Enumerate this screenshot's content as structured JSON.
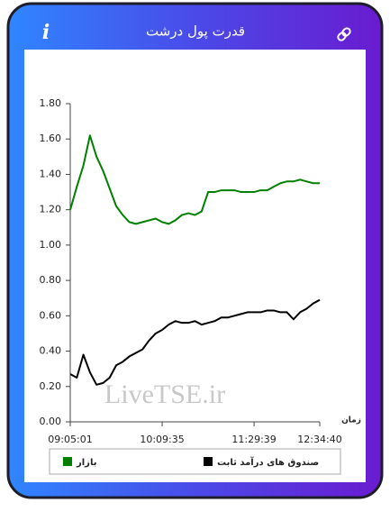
{
  "header": {
    "title": "قدرت پول درشت",
    "info": "i"
  },
  "watermark": "LiveTSE.ir",
  "chart_data": {
    "type": "line",
    "x_label": "زمان",
    "categories": [
      "09:05:01",
      null,
      null,
      null,
      null,
      null,
      null,
      null,
      null,
      null,
      null,
      null,
      null,
      null,
      "10:09:35",
      null,
      null,
      null,
      null,
      null,
      null,
      null,
      null,
      null,
      null,
      null,
      null,
      null,
      "11:29:39",
      null,
      null,
      null,
      null,
      null,
      null,
      null,
      null,
      null,
      "12:34:40"
    ],
    "series": [
      {
        "name": "بازار",
        "color": "#008000",
        "values": [
          1.2,
          1.33,
          1.45,
          1.62,
          1.5,
          1.42,
          1.32,
          1.22,
          1.17,
          1.13,
          1.12,
          1.13,
          1.14,
          1.15,
          1.13,
          1.12,
          1.14,
          1.17,
          1.18,
          1.17,
          1.19,
          1.3,
          1.3,
          1.31,
          1.31,
          1.31,
          1.3,
          1.3,
          1.3,
          1.31,
          1.31,
          1.33,
          1.35,
          1.36,
          1.36,
          1.37,
          1.36,
          1.35,
          1.35
        ]
      },
      {
        "name": "صندوق های درآمد ثابت",
        "color": "#000000",
        "values": [
          0.27,
          0.25,
          0.38,
          0.28,
          0.21,
          0.22,
          0.25,
          0.32,
          0.34,
          0.37,
          0.39,
          0.41,
          0.46,
          0.5,
          0.52,
          0.55,
          0.57,
          0.56,
          0.56,
          0.57,
          0.55,
          0.56,
          0.57,
          0.59,
          0.59,
          0.6,
          0.61,
          0.62,
          0.62,
          0.62,
          0.63,
          0.63,
          0.62,
          0.62,
          0.58,
          0.62,
          0.64,
          0.67,
          0.69
        ]
      }
    ],
    "ylim": [
      0,
      1.8
    ],
    "yticks": [
      {
        "value": 0,
        "label": "0.00"
      },
      {
        "value": 0.2,
        "label": "0.20"
      },
      {
        "value": 0.4,
        "label": "0.40"
      },
      {
        "value": 0.6,
        "label": "0.60"
      },
      {
        "value": 0.8,
        "label": "0.80"
      },
      {
        "value": 1.0,
        "label": "1.00"
      },
      {
        "value": 1.2,
        "label": "1.20"
      },
      {
        "value": 1.4,
        "label": "1.40"
      },
      {
        "value": 1.6,
        "label": "1.60"
      },
      {
        "value": 1.8,
        "label": "1.80"
      }
    ],
    "grid": false,
    "legend": "bottom"
  }
}
